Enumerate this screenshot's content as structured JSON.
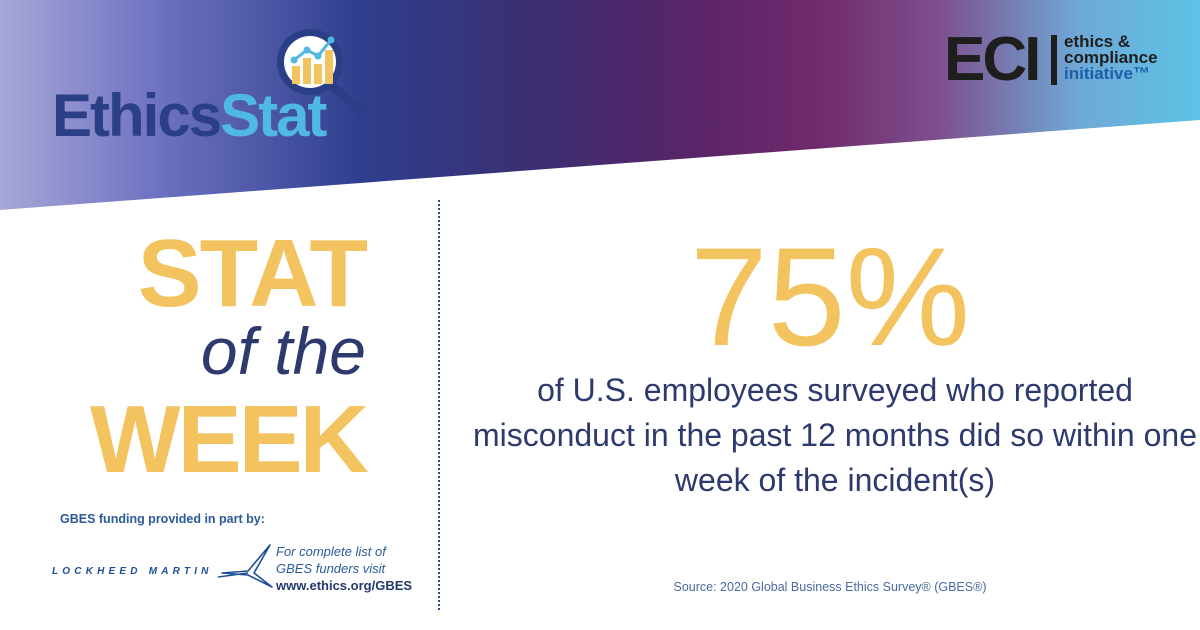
{
  "header": {
    "ethicsstat_logo": {
      "word1": "Ethics",
      "word2": "Stat",
      "icon": "magnifier-bar-chart-icon"
    },
    "eci_logo": {
      "letters": "ECI",
      "line1": "ethics &",
      "line2": "compliance",
      "line3": "initiative™"
    }
  },
  "title": {
    "stat": "STAT",
    "of_the": "of the",
    "week": "WEEK"
  },
  "funding": {
    "label": "GBES funding provided in part by:",
    "sponsor_logo_text": "LOCKHEED MARTIN",
    "note_line1": "For complete list of",
    "note_line2": "GBES funders visit",
    "url": "www.ethics.org/GBES"
  },
  "statistic": {
    "value": "75%",
    "description": "of U.S. employees surveyed who reported misconduct in the past 12 months did so within one week of the incident(s)",
    "source": "Source: 2020 Global Business Ethics Survey® (GBES®)"
  },
  "colors": {
    "accent_yellow": "#f2c35e",
    "navy": "#2e3a6e",
    "brand_blue": "#4fb8e3",
    "eci_blue": "#1a5fa8"
  }
}
